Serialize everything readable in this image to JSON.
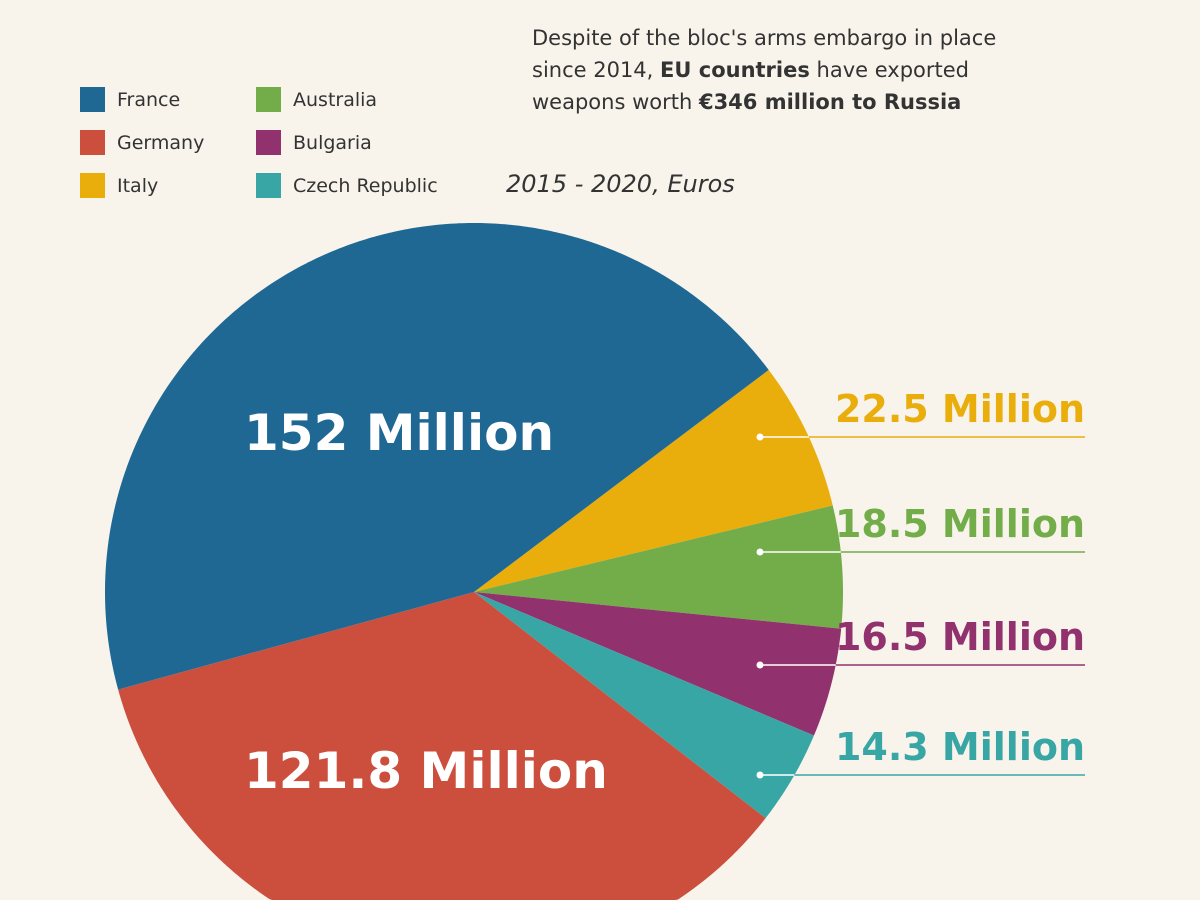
{
  "note": {
    "line1": "Despite of the bloc's arms embargo in place",
    "line2_pre": "since 2014, ",
    "line2_bold": "EU countries",
    "line2_post": " have exported",
    "line3_pre": "weapons worth ",
    "line3_bold": "€346 million to Russia"
  },
  "subtitle": "2015 - 2020, Euros",
  "chart_data": {
    "type": "pie",
    "unit": "Million Euros",
    "slices": [
      {
        "name": "Italy",
        "value": 22.5,
        "label": "22.5 Million",
        "color": "#e9ad0c"
      },
      {
        "name": "Australia",
        "value": 18.5,
        "label": "18.5 Million",
        "color": "#72ad4a"
      },
      {
        "name": "Bulgaria",
        "value": 16.5,
        "label": "16.5 Million",
        "color": "#91316e"
      },
      {
        "name": "Czech Republic",
        "value": 14.3,
        "label": "14.3 Million",
        "color": "#38a6a5"
      },
      {
        "name": "Germany",
        "value": 121.8,
        "label": "121.8 Million",
        "color": "#cc4f3e"
      },
      {
        "name": "France",
        "value": 152,
        "label": "152 Million",
        "color": "#1f6894"
      }
    ],
    "legend": [
      "France",
      "Germany",
      "Italy",
      "Australia",
      "Bulgaria",
      "Czech Republic"
    ],
    "legend_placement": "top-left"
  },
  "background": "#f8f4ec"
}
